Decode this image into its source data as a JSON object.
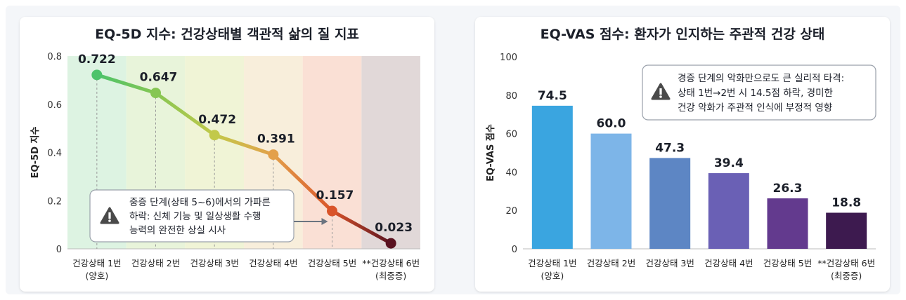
{
  "chart_data": [
    {
      "type": "line",
      "title": "EQ-5D 지수: 건강상태별 객관적 삶의 질 지표",
      "xlabel": "",
      "ylabel": "EQ-5D 지수",
      "ylim": [
        0,
        0.8
      ],
      "yticks": [
        "0",
        "0.2",
        "0.4",
        "0.6",
        "0.8"
      ],
      "grid": false,
      "categories": [
        [
          "건강상태 1번",
          "(양호)"
        ],
        [
          "건강상태 2번"
        ],
        [
          "건강상태 3번"
        ],
        [
          "건강상태 4번"
        ],
        [
          "건강상태 5번"
        ],
        [
          "**건강상태 6번",
          "(최중증)"
        ]
      ],
      "values": [
        0.722,
        0.647,
        0.472,
        0.391,
        0.157,
        0.023
      ],
      "value_labels": [
        "0.722",
        "0.647",
        "0.472",
        "0.391",
        "0.157",
        "0.023"
      ],
      "band_colors": [
        "#d9f2df",
        "#e5f3d6",
        "#eef3d2",
        "#f7ecd7",
        "#f9ddd0",
        "#ded4d4"
      ],
      "point_colors": [
        "#4cc36a",
        "#86c653",
        "#c2c94a",
        "#e3a04a",
        "#d9542a",
        "#5a1220"
      ],
      "annotation": {
        "icon": "warning-icon",
        "lines": [
          "중증 단계(상태 5~6)에서의 가파른",
          "하락: 신체 기능 및 일상생활 수행",
          "능력의 완전한 상실 시사"
        ]
      }
    },
    {
      "type": "bar",
      "title": "EQ-VAS 점수: 환자가 인지하는 주관적 건강 상태",
      "xlabel": "",
      "ylabel": "EQ-VAS 점수",
      "ylim": [
        0,
        100
      ],
      "yticks": [
        "0",
        "20",
        "40",
        "60",
        "80",
        "100"
      ],
      "grid": false,
      "categories": [
        [
          "건강상태 1번",
          "(양호)"
        ],
        [
          "건강상태 2번"
        ],
        [
          "건강상태 3번"
        ],
        [
          "건강상태 4번"
        ],
        [
          "건강상태 5번"
        ],
        [
          "**건강상태 6번",
          "(최중증)"
        ]
      ],
      "values": [
        74.5,
        60.0,
        47.3,
        39.4,
        26.3,
        18.8
      ],
      "value_labels": [
        "74.5",
        "60.0",
        "47.3",
        "39.4",
        "26.3",
        "18.8"
      ],
      "bar_colors": [
        "#3aa5e0",
        "#7db5e8",
        "#5d86c4",
        "#6a60b5",
        "#633a8e",
        "#3d1a4f"
      ],
      "annotation": {
        "icon": "warning-icon",
        "lines": [
          "경증 단계의 악화만으로도 큰 실리적 타격:",
          "상태 1번→2번 시 14.5점 하락, 경미한",
          "건강 악화가 주관적 인식에 부정적 영향"
        ]
      }
    }
  ]
}
